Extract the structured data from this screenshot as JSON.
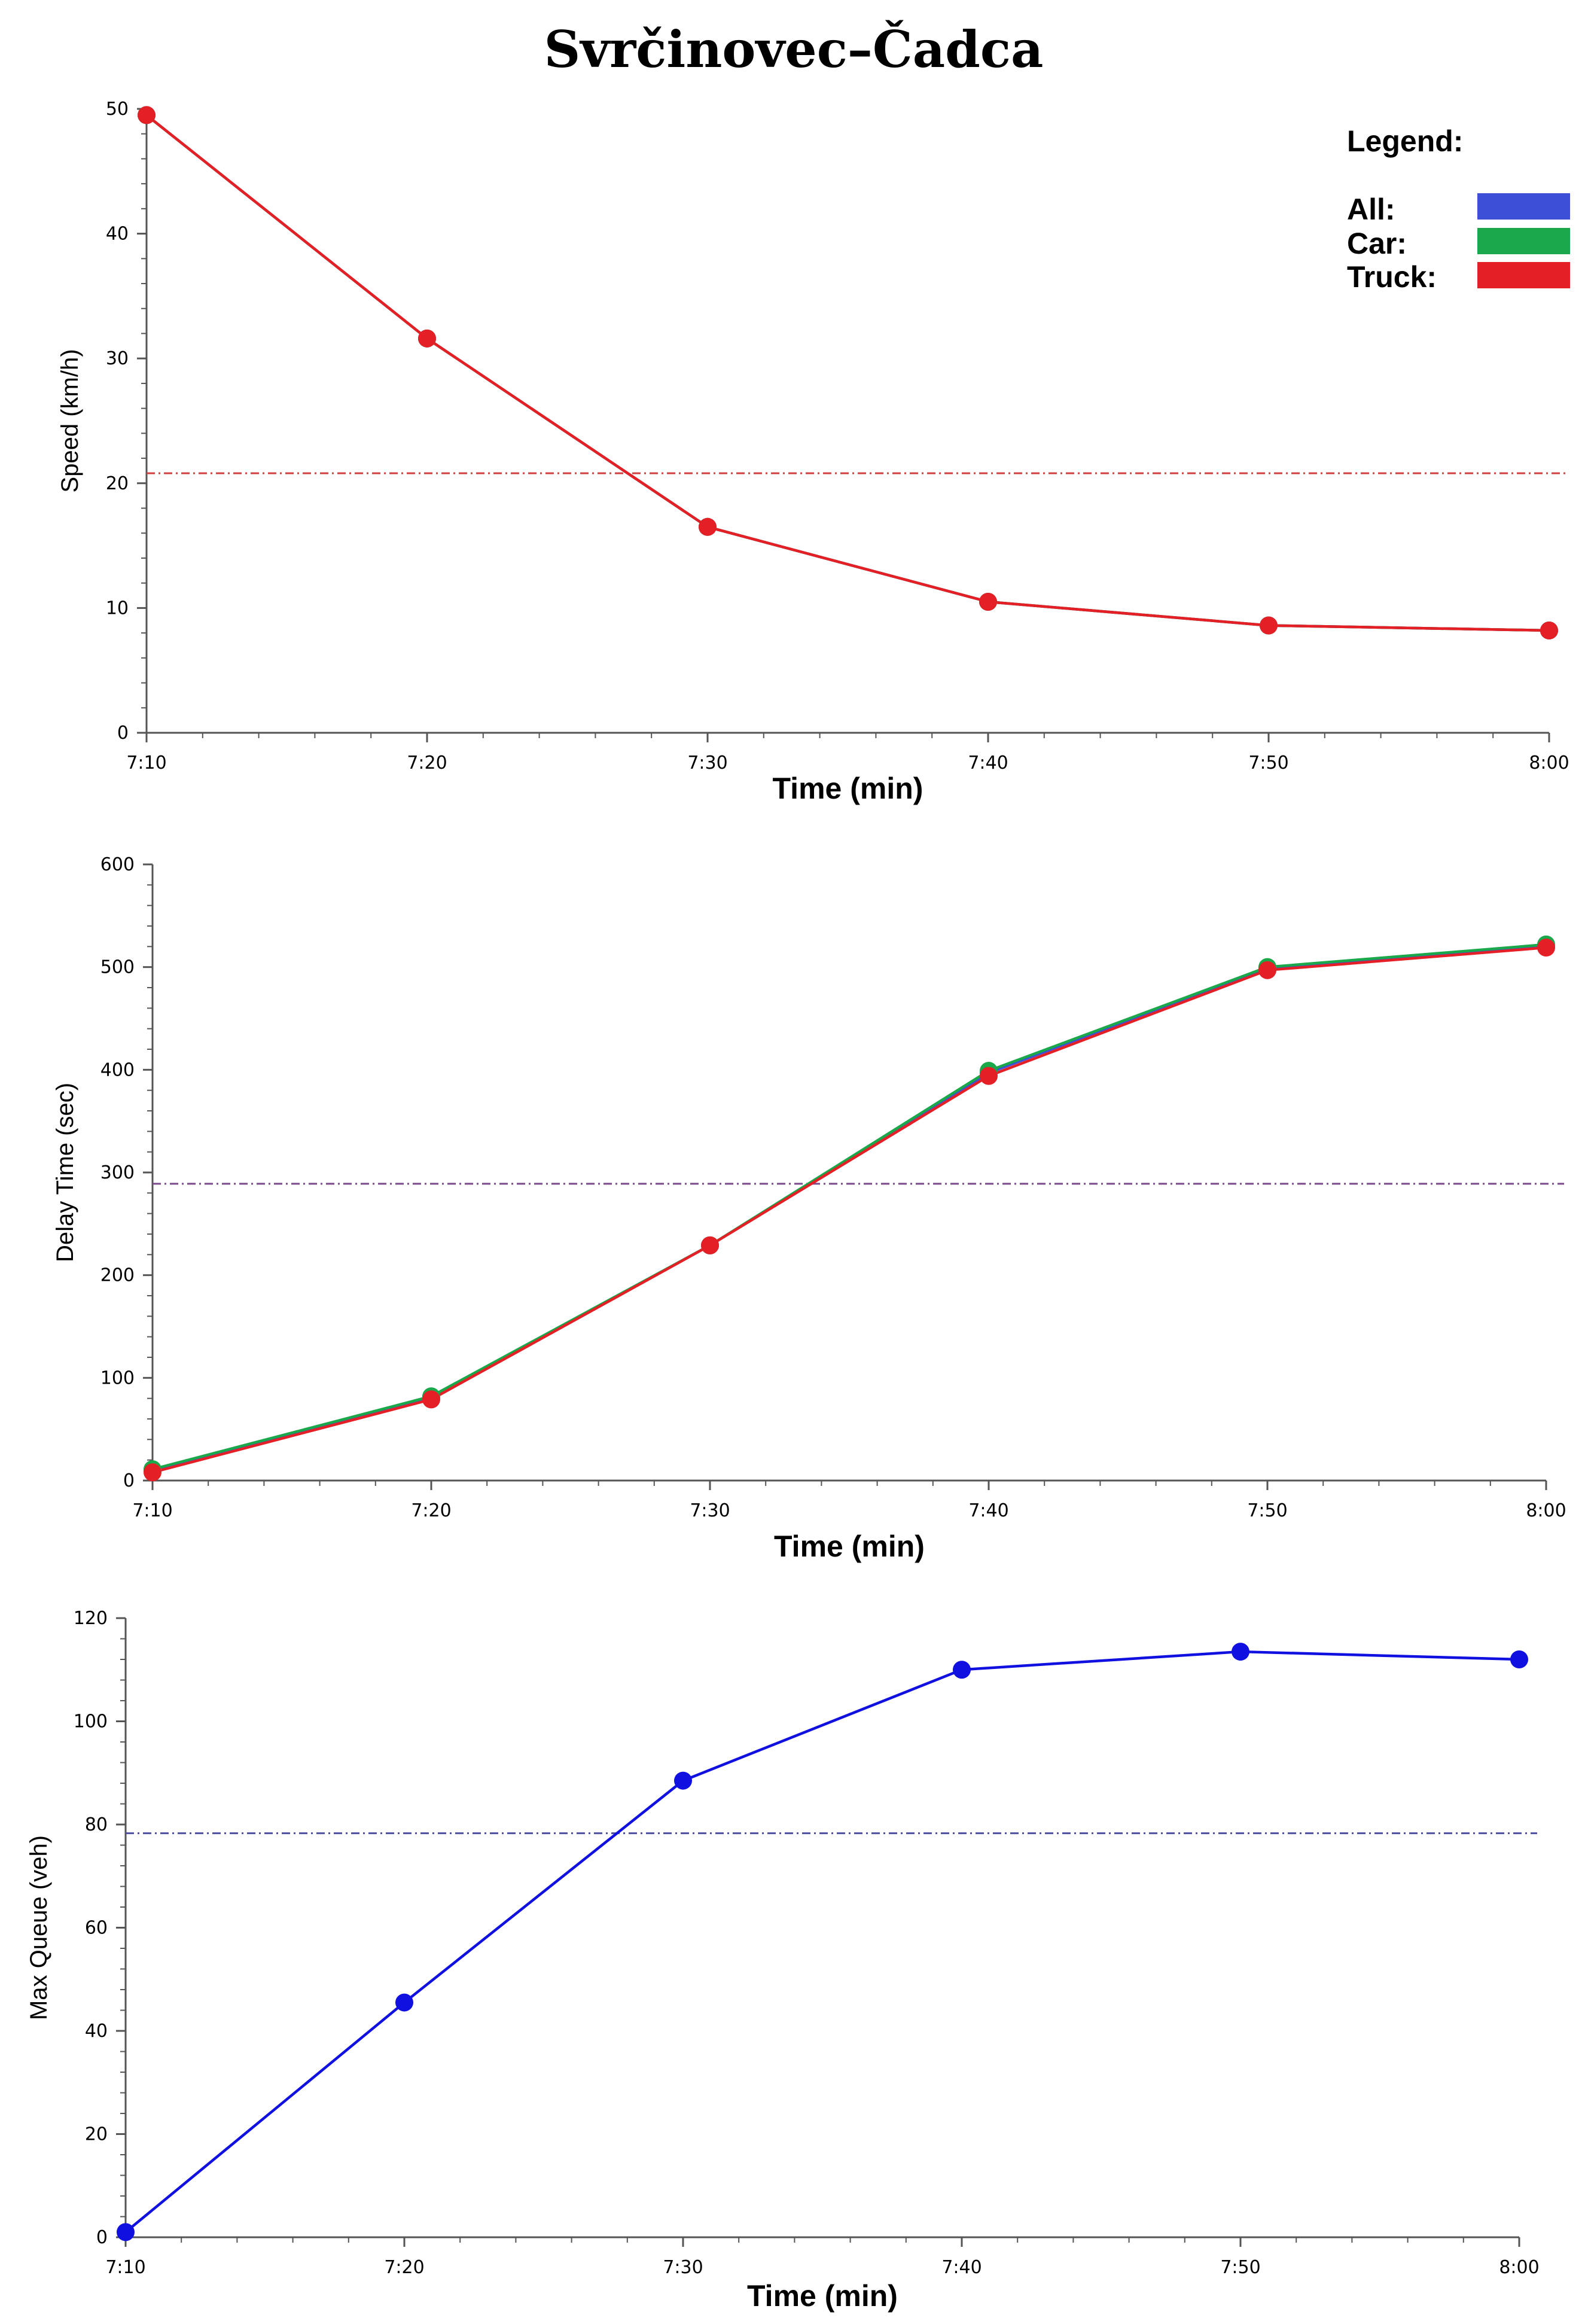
{
  "figure_title": "Svrčinovec–Čadca",
  "legend": {
    "title": "Legend:",
    "entries": [
      {
        "label": "All:",
        "color": "#3c4fd6"
      },
      {
        "label": "Car:",
        "color": "#1aa84a"
      },
      {
        "label": "Truck:",
        "color": "#e41f26"
      }
    ]
  },
  "chart_data": [
    {
      "type": "line",
      "title": "",
      "xlabel": "Time (min)",
      "ylabel": "Speed (km/h)",
      "categories": [
        "7:10",
        "7:20",
        "7:30",
        "7:40",
        "7:50",
        "8:00"
      ],
      "ylim": [
        0,
        50
      ],
      "yticks": [
        0,
        10,
        20,
        30,
        40,
        50
      ],
      "reference_line": {
        "value": 20.8,
        "color": "#d04040"
      },
      "series": [
        {
          "name": "All",
          "color": "#3c4fd6",
          "values": [
            49.5,
            31.6,
            16.5,
            10.5,
            8.6,
            8.2
          ]
        },
        {
          "name": "Car",
          "color": "#1aa84a",
          "values": [
            49.5,
            31.6,
            16.5,
            10.5,
            8.6,
            8.2
          ]
        },
        {
          "name": "Truck",
          "color": "#e41f26",
          "values": [
            49.5,
            31.6,
            16.5,
            10.5,
            8.6,
            8.2
          ]
        }
      ]
    },
    {
      "type": "line",
      "title": "",
      "xlabel": "Time (min)",
      "ylabel": "Delay Time (sec)",
      "categories": [
        "7:10",
        "7:20",
        "7:30",
        "7:40",
        "7:50",
        "8:00"
      ],
      "ylim": [
        0,
        600
      ],
      "yticks": [
        0,
        100,
        200,
        300,
        400,
        500,
        600
      ],
      "reference_line": {
        "value": 289,
        "color": "#7a4a8a"
      },
      "series": [
        {
          "name": "All",
          "color": "#3c4fd6",
          "values": [
            10,
            81,
            229,
            397,
            499,
            520
          ]
        },
        {
          "name": "Car",
          "color": "#1aa84a",
          "values": [
            11,
            82,
            229,
            399,
            500,
            522
          ]
        },
        {
          "name": "Truck",
          "color": "#e41f26",
          "values": [
            8,
            79,
            229,
            394,
            497,
            519
          ]
        }
      ]
    },
    {
      "type": "line",
      "title": "",
      "xlabel": "Time (min)",
      "ylabel": "Max Queue (veh)",
      "categories": [
        "7:10",
        "7:20",
        "7:30",
        "7:40",
        "7:50",
        "8:00"
      ],
      "ylim": [
        0,
        120
      ],
      "yticks": [
        0,
        20,
        40,
        60,
        80,
        100,
        120
      ],
      "reference_line": {
        "value": 78.3,
        "color": "#5050a0"
      },
      "series": [
        {
          "name": "All",
          "color": "#1010e0",
          "values": [
            1,
            45.5,
            88.5,
            110,
            113.5,
            112
          ]
        }
      ]
    }
  ]
}
